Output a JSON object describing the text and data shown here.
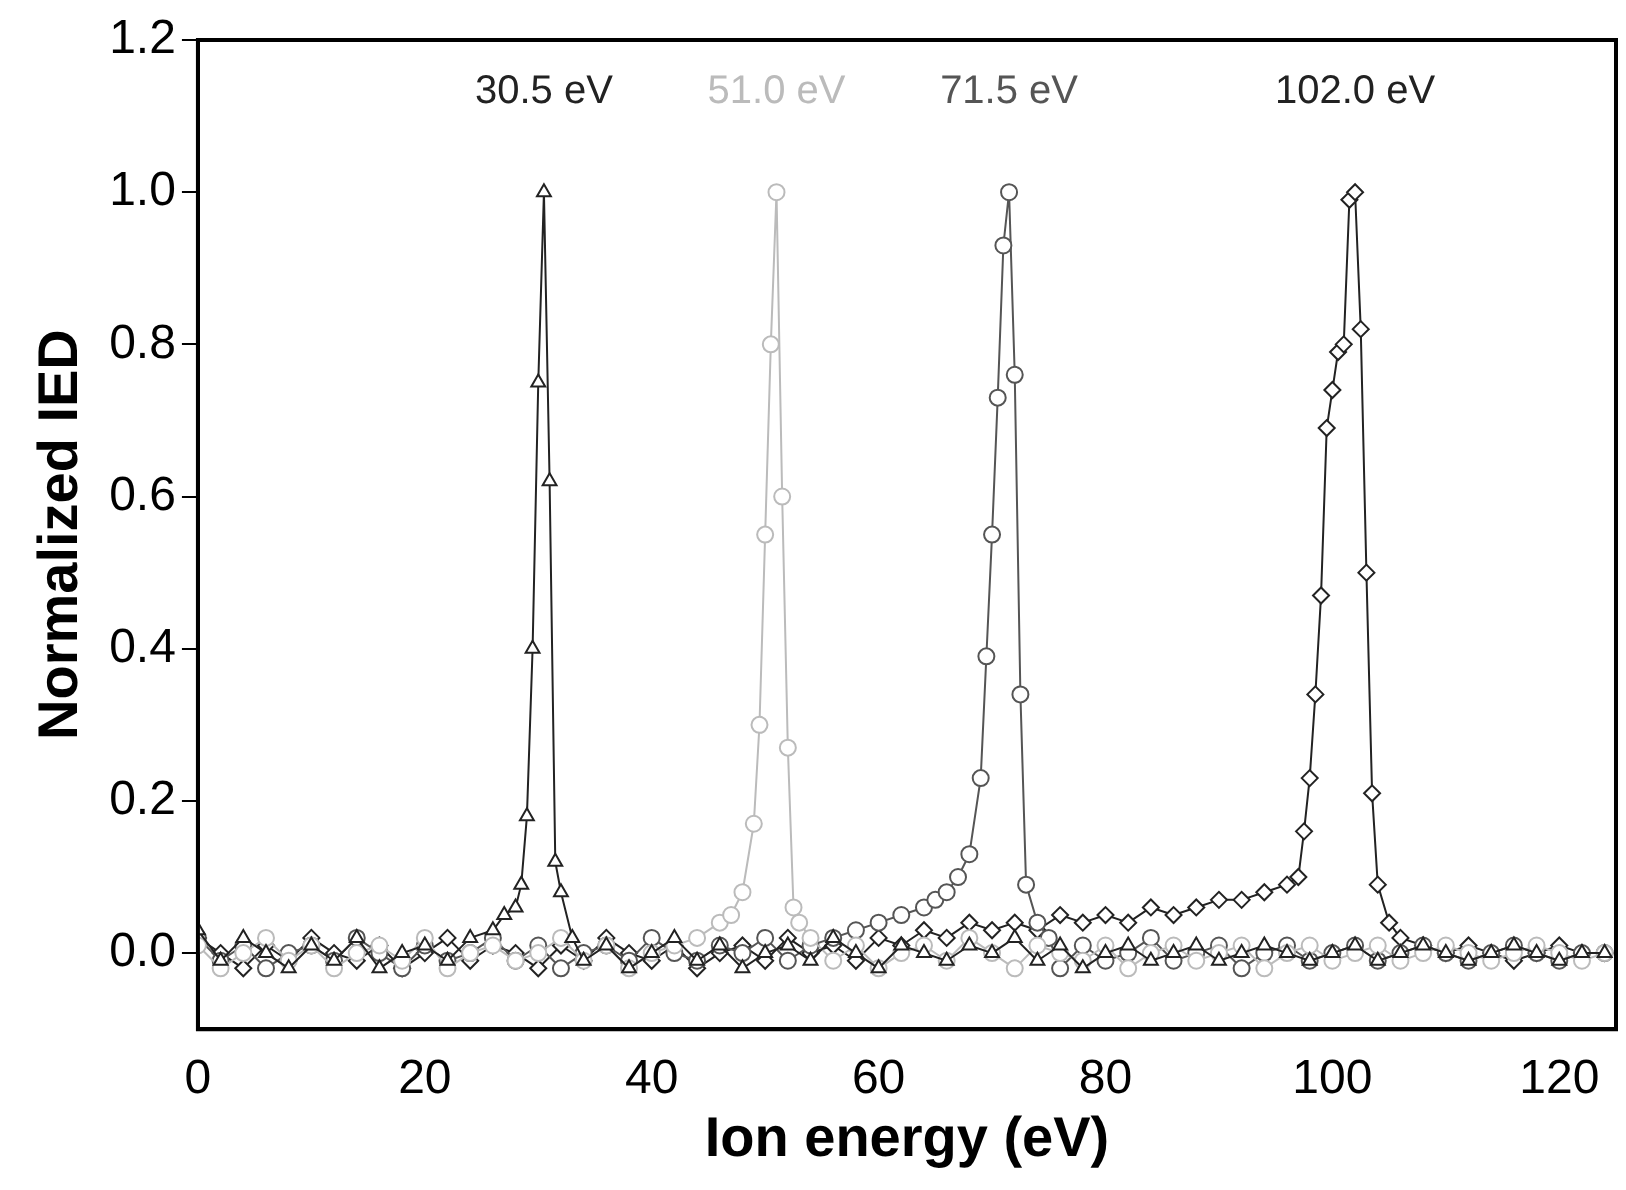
{
  "chart_data": {
    "type": "line",
    "xlabel": "Ion energy (eV)",
    "ylabel": "Normalized IED",
    "xlim": [
      0,
      125
    ],
    "xticks": [
      0,
      20,
      40,
      60,
      80,
      100,
      120
    ],
    "ylim": [
      -0.1,
      1.2
    ],
    "yticks": [
      {
        "value": 0,
        "label": "0.0"
      },
      0.2,
      0.4,
      0.6,
      0.8,
      {
        "value": 1,
        "label": "1.0"
      },
      1.2
    ],
    "grid": false,
    "legend": false,
    "line_style": "solid",
    "annotations": [
      "30.5 eV",
      "51.0 eV",
      "71.5 eV",
      "102.0 eV"
    ],
    "series": [
      {
        "color": "#222222",
        "marker": "triangle",
        "x": [
          0,
          2,
          4,
          6,
          8,
          10,
          12,
          14,
          16,
          18,
          20,
          22,
          24,
          26,
          27,
          28,
          28.5,
          29,
          29.5,
          30,
          30.5,
          31,
          31.5,
          32,
          33,
          34,
          36,
          38,
          40,
          42,
          44,
          46,
          48,
          50,
          52,
          54,
          56,
          58,
          60,
          62,
          64,
          66,
          68,
          70,
          72,
          74,
          76,
          78,
          80,
          82,
          84,
          86,
          88,
          90,
          92,
          94,
          96,
          98,
          100,
          102,
          104,
          106,
          108,
          110,
          112,
          114,
          116,
          118,
          120,
          122,
          124
        ],
        "values": [
          0.03,
          -0.01,
          0.02,
          0,
          -0.02,
          0.01,
          -0.01,
          0.02,
          -0.02,
          0,
          0.01,
          -0.01,
          0.02,
          0.03,
          0.05,
          0.06,
          0.09,
          0.18,
          0.4,
          0.75,
          1.0,
          0.62,
          0.12,
          0.08,
          0.02,
          -0.01,
          0.01,
          -0.02,
          0,
          0.02,
          -0.01,
          0.01,
          -0.02,
          0,
          0.01,
          -0.01,
          0.02,
          0,
          -0.02,
          0.01,
          0,
          -0.01,
          0.01,
          0,
          0.02,
          -0.01,
          0.01,
          -0.02,
          0,
          0.01,
          -0.01,
          0,
          0.01,
          -0.01,
          0,
          0.01,
          0,
          -0.01,
          0,
          0.01,
          -0.01,
          0,
          0.01,
          0,
          -0.01,
          0,
          0.01,
          0,
          -0.01,
          0,
          0
        ]
      },
      {
        "color": "#bbbbbb",
        "marker": "circle",
        "x": [
          0,
          2,
          4,
          6,
          8,
          10,
          12,
          14,
          16,
          18,
          20,
          22,
          24,
          26,
          28,
          30,
          32,
          34,
          36,
          38,
          40,
          42,
          44,
          46,
          47,
          48,
          49,
          49.5,
          50,
          50.5,
          51,
          51.5,
          52,
          52.5,
          53,
          54,
          56,
          58,
          60,
          62,
          64,
          66,
          68,
          70,
          72,
          74,
          76,
          78,
          80,
          82,
          84,
          86,
          88,
          90,
          92,
          94,
          96,
          98,
          100,
          102,
          104,
          106,
          108,
          110,
          112,
          114,
          116,
          118,
          120,
          122,
          124
        ],
        "values": [
          0.01,
          -0.02,
          0,
          0.02,
          -0.01,
          0.01,
          -0.02,
          0,
          0.01,
          -0.01,
          0.02,
          -0.02,
          0,
          0.01,
          -0.01,
          0,
          0.02,
          -0.01,
          0.01,
          -0.02,
          0,
          0.01,
          0.02,
          0.04,
          0.05,
          0.08,
          0.17,
          0.3,
          0.55,
          0.8,
          1.0,
          0.6,
          0.27,
          0.06,
          0.04,
          0.02,
          -0.01,
          0.01,
          -0.02,
          0,
          0.01,
          -0.01,
          0.02,
          0,
          -0.02,
          0.01,
          0,
          -0.01,
          0.01,
          -0.02,
          0,
          0.01,
          -0.01,
          0,
          0.01,
          -0.02,
          0,
          0.01,
          -0.01,
          0,
          0.01,
          -0.01,
          0,
          0.01,
          0,
          -0.01,
          0,
          0.01,
          0,
          -0.01,
          0
        ]
      },
      {
        "color": "#555555",
        "marker": "circle",
        "x": [
          0,
          2,
          4,
          6,
          8,
          10,
          12,
          14,
          16,
          18,
          20,
          22,
          24,
          26,
          28,
          30,
          32,
          34,
          36,
          38,
          40,
          42,
          44,
          46,
          48,
          50,
          52,
          54,
          56,
          58,
          60,
          62,
          64,
          65,
          66,
          67,
          68,
          69,
          69.5,
          70,
          70.5,
          71,
          71.5,
          72,
          72.5,
          73,
          74,
          75,
          76,
          78,
          80,
          82,
          84,
          86,
          88,
          90,
          92,
          94,
          96,
          98,
          100,
          102,
          104,
          106,
          108,
          110,
          112,
          114,
          116,
          118,
          120,
          122,
          124
        ],
        "values": [
          0.02,
          -0.01,
          0.01,
          -0.02,
          0,
          0.01,
          -0.01,
          0.02,
          0,
          -0.02,
          0.01,
          -0.01,
          0,
          0.02,
          -0.01,
          0.01,
          -0.02,
          0,
          0.01,
          -0.01,
          0.02,
          0,
          -0.01,
          0.01,
          0,
          0.02,
          -0.01,
          0.01,
          0.02,
          0.03,
          0.04,
          0.05,
          0.06,
          0.07,
          0.08,
          0.1,
          0.13,
          0.23,
          0.39,
          0.55,
          0.73,
          0.93,
          1.0,
          0.76,
          0.34,
          0.09,
          0.04,
          0.02,
          -0.02,
          0.01,
          -0.01,
          0,
          0.02,
          -0.01,
          0,
          0.01,
          -0.02,
          0,
          0.01,
          -0.01,
          0,
          0.01,
          -0.01,
          0,
          0.01,
          0,
          -0.01,
          0,
          0.01,
          0,
          -0.01,
          0,
          0
        ]
      },
      {
        "color": "#222222",
        "marker": "diamond",
        "x": [
          0,
          2,
          4,
          6,
          8,
          10,
          12,
          14,
          16,
          18,
          20,
          22,
          24,
          26,
          28,
          30,
          32,
          34,
          36,
          38,
          40,
          42,
          44,
          46,
          48,
          50,
          52,
          54,
          56,
          58,
          60,
          62,
          64,
          66,
          68,
          70,
          72,
          74,
          76,
          78,
          80,
          82,
          84,
          86,
          88,
          90,
          92,
          94,
          96,
          97,
          97.5,
          98,
          98.5,
          99,
          99.5,
          100,
          100.5,
          101,
          101.5,
          102,
          102.5,
          103,
          103.5,
          104,
          105,
          106,
          108,
          110,
          112,
          114,
          116,
          118,
          120,
          122,
          124
        ],
        "values": [
          0.02,
          0,
          -0.02,
          0.01,
          -0.01,
          0.02,
          0,
          -0.01,
          0.01,
          -0.02,
          0,
          0.02,
          -0.01,
          0.01,
          0,
          -0.02,
          0.01,
          -0.01,
          0.02,
          0,
          -0.01,
          0.01,
          -0.02,
          0,
          0.01,
          -0.01,
          0.02,
          0,
          0.01,
          -0.01,
          0.02,
          0.01,
          0.03,
          0.02,
          0.04,
          0.03,
          0.04,
          0.03,
          0.05,
          0.04,
          0.05,
          0.04,
          0.06,
          0.05,
          0.06,
          0.07,
          0.07,
          0.08,
          0.09,
          0.1,
          0.16,
          0.23,
          0.34,
          0.47,
          0.69,
          0.74,
          0.79,
          0.8,
          0.99,
          1.0,
          0.82,
          0.5,
          0.21,
          0.09,
          0.04,
          0.02,
          0.01,
          0,
          0.01,
          0,
          -0.01,
          0,
          0.01,
          0,
          0
        ]
      }
    ]
  }
}
